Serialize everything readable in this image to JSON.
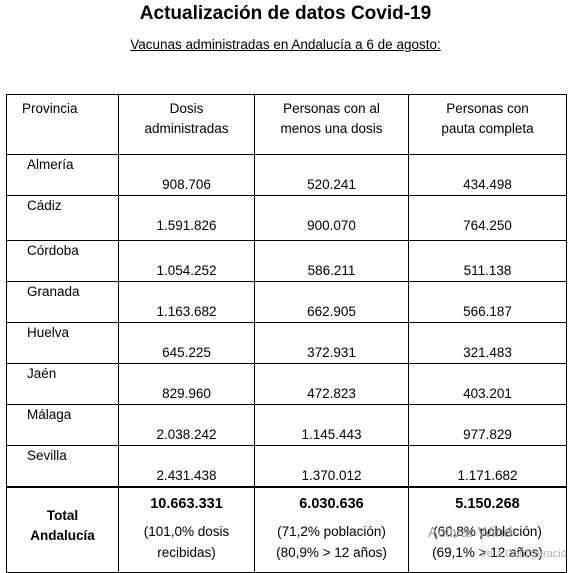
{
  "title": "Actualización de datos Covid-19",
  "subtitle": "Vacunas administradas en Andalucía a 6 de agosto:",
  "headers": {
    "provincia": "Provincia",
    "dosis": [
      "Dosis",
      "administradas"
    ],
    "una_dosis": [
      "Personas con al",
      "menos una dosis"
    ],
    "pauta": [
      "Personas con",
      "pauta completa"
    ]
  },
  "rows": [
    {
      "provincia": "Almería",
      "dosis": "908.706",
      "una_dosis": "520.241",
      "pauta": "434.498"
    },
    {
      "provincia": "Cádiz",
      "dosis": "1.591.826",
      "una_dosis": "900.070",
      "pauta": "764.250"
    },
    {
      "provincia": "Córdoba",
      "dosis": "1.054.252",
      "una_dosis": "586.211",
      "pauta": "511.138"
    },
    {
      "provincia": "Granada",
      "dosis": "1.163.682",
      "una_dosis": "662.905",
      "pauta": "566.187"
    },
    {
      "provincia": "Huelva",
      "dosis": "645.225",
      "una_dosis": "372.931",
      "pauta": "321.483"
    },
    {
      "provincia": "Jaén",
      "dosis": "829.960",
      "una_dosis": "472.823",
      "pauta": "403.201"
    },
    {
      "provincia": "Málaga",
      "dosis": "2.038.242",
      "una_dosis": "1.145.443",
      "pauta": "977.829"
    },
    {
      "provincia": "Sevilla",
      "dosis": "2.431.438",
      "una_dosis": "1.370.012",
      "pauta": "1.171.682"
    }
  ],
  "total": {
    "label": [
      "Total",
      "Andalucía"
    ],
    "dosis": {
      "value": "10.663.331",
      "notes": [
        "(101,0% dosis",
        "recibidas)"
      ]
    },
    "una_dosis": {
      "value": "6.030.636",
      "notes": [
        "(71,2% población)",
        "(80,9% > 12 años)"
      ]
    },
    "pauta": {
      "value": "5.150.268",
      "notes": [
        "(60,8% población)",
        "(69,1% > 12 años)"
      ]
    }
  },
  "watermark": {
    "line1": "Activar Wind",
    "line2": "Ve a Configuració"
  }
}
